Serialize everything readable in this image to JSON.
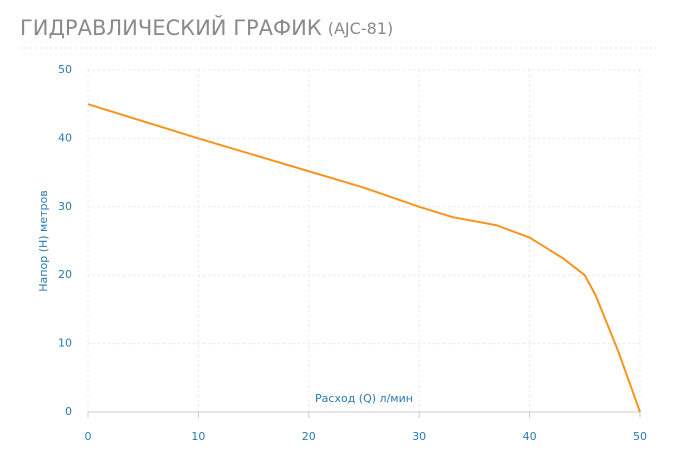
{
  "chart_data": {
    "type": "line",
    "title": "ГИДРАВЛИЧЕСКИЙ ГРАФИК",
    "subtitle": "(AJC-81)",
    "x_label": "Расход (Q) л/мин",
    "y_label": "Напор (H) метров",
    "xlim": [
      0,
      50
    ],
    "xticks": [
      0,
      10,
      20,
      30,
      40,
      50
    ],
    "ylim": [
      0,
      50
    ],
    "yticks": [
      0,
      10,
      20,
      30,
      40,
      50
    ],
    "grid": true,
    "series": [
      {
        "color": "#f7941d",
        "x": [
          0,
          10,
          20,
          25,
          30,
          33,
          37,
          40,
          43,
          45,
          46,
          48,
          50
        ],
        "values": [
          45,
          40,
          35.2,
          32.8,
          30,
          28.5,
          27.3,
          25.5,
          22.5,
          20,
          17,
          9,
          0
        ]
      }
    ]
  }
}
